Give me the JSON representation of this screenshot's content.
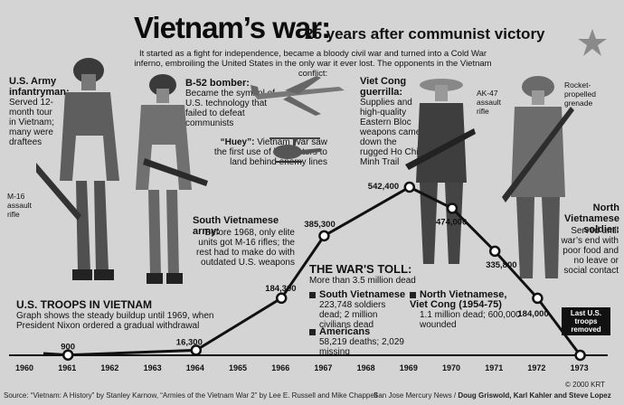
{
  "header": {
    "title": "Vietnam’s war:",
    "subtitle": "25 years after communist victory",
    "intro": "It started as a fight for independence, became a bloody civil war and turned into a Cold War inferno, embroiling the United States in the only war it ever lost. The opponents in the Vietnam conflict:"
  },
  "labels": {
    "us_army_title": "U.S. Army infantryman:",
    "us_army_body": "Served 12-month tour in Vietnam; many were draftees",
    "m16": "M-16 assault rifle",
    "b52_title": "B-52 bomber:",
    "b52_body": "Became the symbol of U.S. technology that failed to defeat communists",
    "huey_title": "“Huey”:",
    "huey_body": "Vietnam War saw the first use of helicopters to land behind enemy lines",
    "sva_title": "South Vietnamese army:",
    "sva_body": "Before 1968, only elite units got M-16 rifles; the rest had to make do with outdated U.S. weapons",
    "vc_title": "Viet Cong guerrilla:",
    "vc_body": "Supplies and high-quality Eastern Bloc weapons came down the rugged Ho Chi Minh Trail",
    "ak47": "AK-47 assault rifle",
    "rpg": "Rocket-propelled grenade",
    "nva_title": "North Vietnamese soldier:",
    "nva_body": "Served until war’s end with poor food and no leave or social contact"
  },
  "troops_box": {
    "title": "U.S. TROOPS IN VIETNAM",
    "body": "Graph shows the steady buildup until 1969, when President Nixon ordered a gradual withdrawal"
  },
  "toll": {
    "title": "THE WAR'S TOLL:",
    "total": "More than 3.5 million dead",
    "south_title": "South Vietnamese",
    "south_body": "223,748 soldiers dead; 2 million civilians dead",
    "north_title": "North Vietnamese, Viet Cong (1954-75)",
    "north_body": "1.1 million dead; 600,000 wounded",
    "us_title": "Americans",
    "us_body": "58,219 deaths; 2,029 missing"
  },
  "last_troops": "Last U.S. troops removed",
  "footer": {
    "source": "Source: “Vietnam: A History” by Stanley Karnow, “Armies of the Vietnam War 2” by Lee E. Russell and Mike Chappell",
    "credit_paper": "San Jose Mercury News / ",
    "credit_names": "Doug Griswold, Karl Kahler and Steve Lopez",
    "copyright": "© 2000 KRT"
  },
  "chart_data": {
    "type": "line",
    "title": "U.S. TROOPS IN VIETNAM",
    "x": [
      1960,
      1961,
      1962,
      1963,
      1964,
      1965,
      1966,
      1967,
      1968,
      1969,
      1970,
      1971,
      1972,
      1973
    ],
    "series": [
      {
        "values": [
          null,
          900,
          null,
          null,
          16300,
          null,
          184300,
          385300,
          null,
          542400,
          474000,
          335800,
          184000,
          0
        ],
        "labels": [
          "",
          "900",
          "",
          "",
          "16,300",
          "",
          "184,300",
          "385,300",
          "",
          "542,400",
          "474,000",
          "335,800",
          "184,000",
          ""
        ]
      }
    ],
    "xlabel": "",
    "ylabel": "",
    "ylim": [
      0,
      542400
    ]
  }
}
